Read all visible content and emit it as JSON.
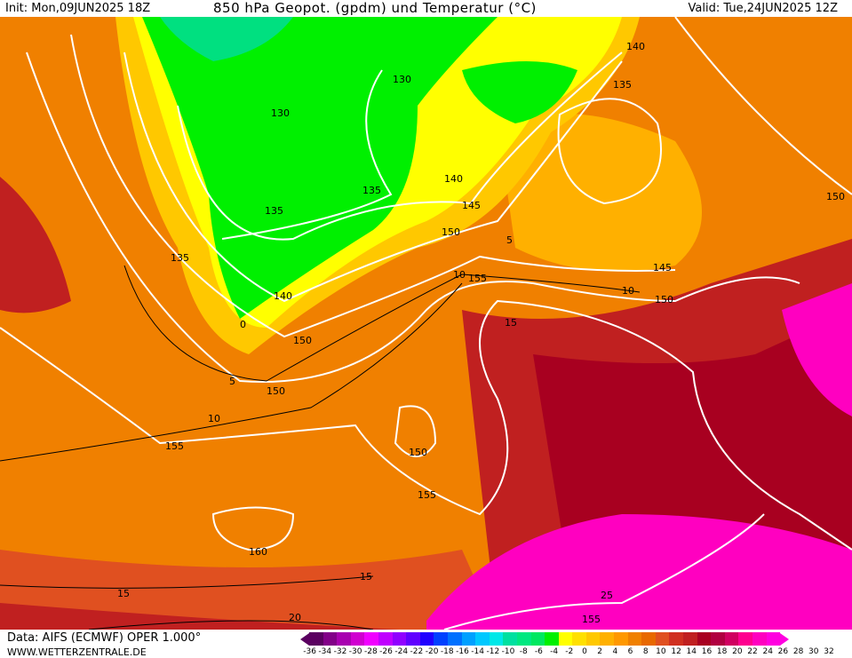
{
  "header": {
    "init": "Init: Mon,09JUN2025 18Z",
    "title": "850 hPa Geopot. (gpdm) und Temperatur (°C)",
    "valid": "Valid: Tue,24JUN2025 12Z"
  },
  "footer": {
    "source": "Data: AIFS (ECMWF) OPER 1.000°",
    "website": "WWW.WETTERZENTRALE.DE"
  },
  "legend": {
    "colors": [
      "#5a0060",
      "#820088",
      "#a800b0",
      "#d000d0",
      "#f000ff",
      "#c000ff",
      "#9000ff",
      "#6000ff",
      "#2000ff",
      "#0040ff",
      "#0070ff",
      "#00a0ff",
      "#00c8ff",
      "#00e8e8",
      "#00e0a0",
      "#00e880",
      "#00e860",
      "#00f000",
      "#ffff00",
      "#ffe000",
      "#ffc800",
      "#ffb000",
      "#ff9800",
      "#f08000",
      "#e86800",
      "#e05020",
      "#d03020",
      "#c02020",
      "#a80020",
      "#b00040",
      "#d00060",
      "#ff0090",
      "#ff00c0",
      "#ff00e0"
    ],
    "labels": [
      "-36",
      "-34",
      "-32",
      "-30",
      "-28",
      "-26",
      "-24",
      "-22",
      "-20",
      "-18",
      "-16",
      "-14",
      "-12",
      "-10",
      "-8",
      "-6",
      "-4",
      "-2",
      "0",
      "2",
      "4",
      "6",
      "8",
      "10",
      "12",
      "14",
      "16",
      "18",
      "20",
      "22",
      "24",
      "26",
      "28",
      "30",
      "32"
    ]
  },
  "geopotential_labels": [
    "130",
    "130",
    "135",
    "135",
    "135",
    "135",
    "140",
    "140",
    "140",
    "145",
    "145",
    "150",
    "150",
    "150",
    "150",
    "150",
    "150",
    "155",
    "155",
    "155",
    "155",
    "160"
  ],
  "temperature_labels": [
    "0",
    "5",
    "5",
    "10",
    "10",
    "10",
    "15",
    "15",
    "15",
    "20",
    "25"
  ]
}
